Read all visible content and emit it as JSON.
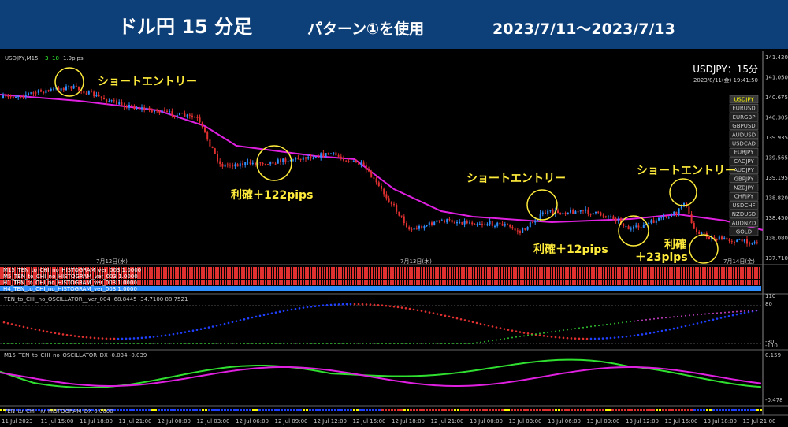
{
  "header": {
    "title": "ドル円 15 分足",
    "pattern": "パターン①を使用",
    "period": "2023/7/11～2023/7/13"
  },
  "chart": {
    "symbol": "USDJPY,M15",
    "val_a": "3",
    "val_b": "10",
    "spread": "1.9pips",
    "info_title": "USDJPY：15分",
    "info_time": "2023/8/11(金) 19:41:50",
    "symbols": [
      "USDJPY",
      "EURUSD",
      "EURGBP",
      "GBPUSD",
      "AUDUSD",
      "USDCAD",
      "EURJPY",
      "CADJPY",
      "AUDJPY",
      "GBPJPY",
      "NZDJPY",
      "CHFJPY",
      "USDCHF",
      "NZDUSD",
      "AUDNZD",
      "GOLD"
    ],
    "price_labels": [
      "141.420",
      "141.050",
      "140.675",
      "140.305",
      "139.935",
      "139.565",
      "139.195",
      "138.820",
      "138.450",
      "138.080",
      "137.710"
    ],
    "day_labels": [
      "7月12日(水)",
      "7月13日(木)",
      "7月14日(金)"
    ]
  },
  "annotations": [
    "ショートエントリー",
    "利確＋122pips",
    "ショートエントリー",
    "ショートエントリー",
    "利確＋12pips",
    "利確",
    "＋23pips"
  ],
  "indicators": {
    "histograms": [
      "M15_TEN_to_CHI_no_HISTOGRAM_ver_003 1.0000",
      "M5_TEN_to_CHI_no_HISTOGRAM_ver_003 1.0000",
      "H1_TEN_to_CHI_no_HISTOGRAM_ver_003 1.0000",
      "H4_TEN_to_CHI_no_HISTOGRAM_ver_003 1.0000"
    ],
    "oscillator": "TEN_to_CHI_no_OSCILLATOR__ver_004 -68.8445 -34.7100 88.7521",
    "osc_axis": [
      "110",
      "80",
      "-80",
      "-110"
    ],
    "dx": "M15_TEN_to_CHI_no_OSCILLATOR_DX -0.034 -0.039",
    "dx_axis": [
      "0.159",
      "-0.478"
    ],
    "dx_hist": "TEN_to_CHI_no_HISTOGRAM_DX 0.0000"
  },
  "time_labels": [
    "11 Jul 2023",
    "11 Jul 15:00",
    "11 Jul 18:00",
    "11 Jul 21:00",
    "12 Jul 00:00",
    "12 Jul 03:00",
    "12 Jul 06:00",
    "12 Jul 09:00",
    "12 Jul 12:00",
    "12 Jul 15:00",
    "12 Jul 18:00",
    "12 Jul 21:00",
    "13 Jul 00:00",
    "13 Jul 03:00",
    "13 Jul 06:00",
    "13 Jul 09:00",
    "13 Jul 12:00",
    "13 Jul 15:00",
    "13 Jul 18:00",
    "13 Jul 21:00"
  ]
}
